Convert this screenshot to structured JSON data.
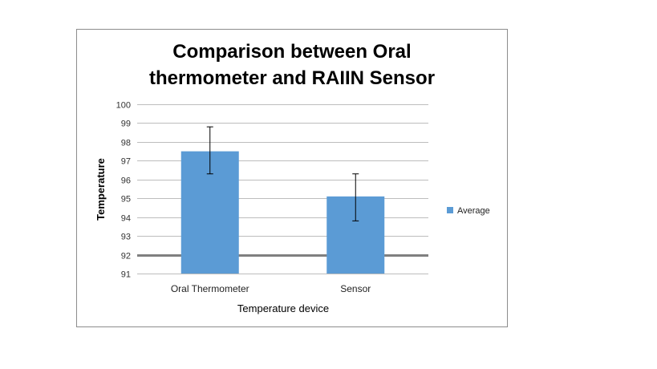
{
  "chart_data": {
    "type": "bar",
    "title_line1": "Comparison between Oral",
    "title_line2": "thermometer and RAIIN Sensor",
    "xlabel": "Temperature device",
    "ylabel": "Temperature",
    "categories": [
      "Oral Thermometer",
      "Sensor"
    ],
    "series": [
      {
        "name": "Average",
        "values": [
          97.5,
          95.1
        ],
        "error_low": [
          96.3,
          93.8
        ],
        "error_high": [
          98.8,
          96.3
        ]
      }
    ],
    "ylim": [
      91,
      100
    ],
    "yticks": [
      91,
      92,
      93,
      94,
      95,
      96,
      97,
      98,
      99,
      100
    ],
    "ytick_labels": [
      "91",
      "92",
      "93",
      "94",
      "95",
      "96",
      "97",
      "98",
      "99",
      "100"
    ],
    "highlighted_gridline": 92,
    "grid": true,
    "legend_position": "right",
    "bar_color": "#5b9bd5",
    "gridline_color": "#bdbdbd",
    "highlight_gridline_color": "#808080",
    "error_bar_color": "#000000"
  }
}
